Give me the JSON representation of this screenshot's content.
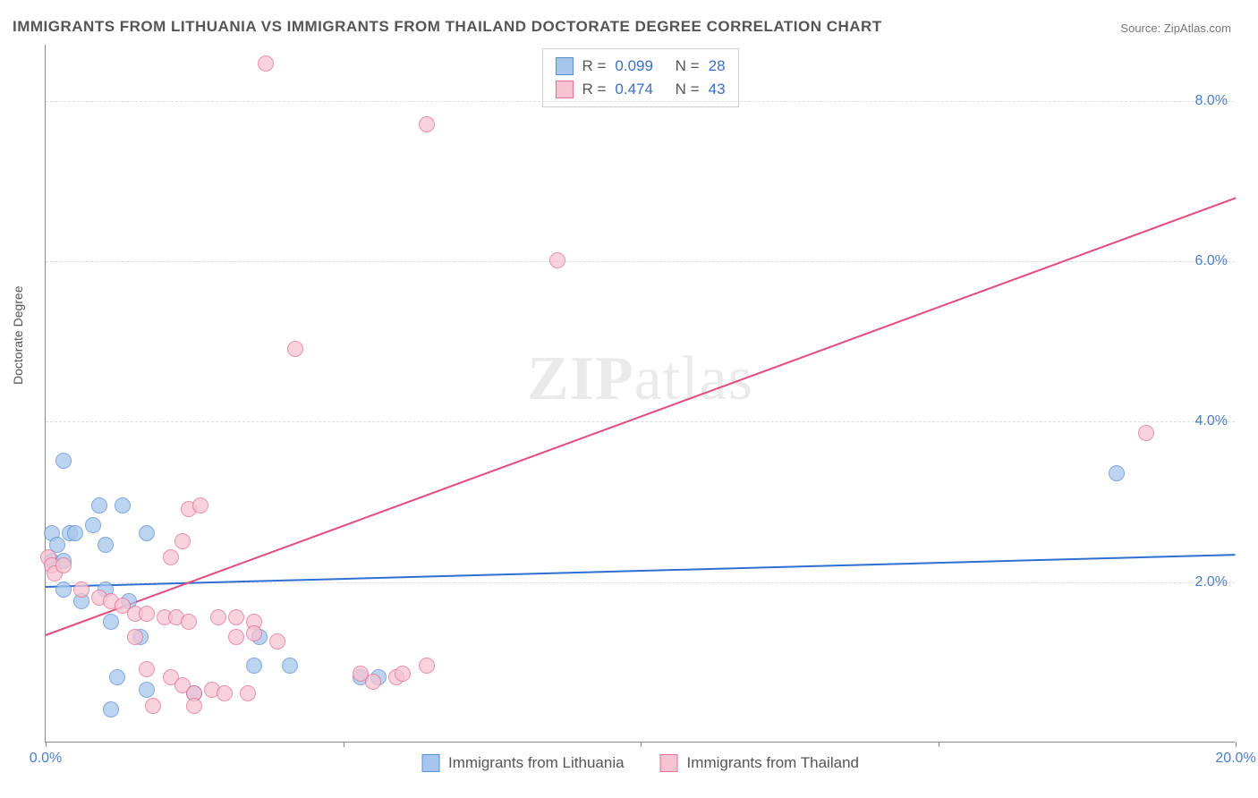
{
  "title": "IMMIGRANTS FROM LITHUANIA VS IMMIGRANTS FROM THAILAND DOCTORATE DEGREE CORRELATION CHART",
  "source_label": "Source:",
  "source_name": "ZipAtlas.com",
  "ylabel": "Doctorate Degree",
  "watermark": {
    "bold": "ZIP",
    "rest": "atlas"
  },
  "chart": {
    "type": "scatter",
    "background_color": "#ffffff",
    "grid_color": "#dddddd",
    "axis_color": "#888888",
    "xlim": [
      0,
      20
    ],
    "ylim": [
      0,
      8.7
    ],
    "xticks": [
      0,
      5,
      10,
      15,
      20
    ],
    "xtick_labels": [
      "0.0%",
      "",
      "",
      "",
      "20.0%"
    ],
    "yticks": [
      2,
      4,
      6,
      8
    ],
    "ytick_labels": [
      "2.0%",
      "4.0%",
      "6.0%",
      "8.0%"
    ],
    "tick_label_color": "#4a7ec9",
    "tick_label_fontsize": 16,
    "label_fontsize": 14,
    "title_fontsize": 17,
    "title_color": "#555555",
    "series": [
      {
        "name": "Immigrants from Lithuania",
        "fill_color": "#a7c6ed",
        "stroke_color": "#5a8ed0",
        "marker_size": 18,
        "R": 0.099,
        "N": 28,
        "trend": {
          "x1": 0,
          "y1": 1.95,
          "x2": 20,
          "y2": 2.35,
          "color": "#2e6fd1",
          "width": 2
        },
        "points": [
          [
            0.3,
            3.5
          ],
          [
            0.1,
            2.6
          ],
          [
            0.4,
            2.6
          ],
          [
            0.2,
            2.45
          ],
          [
            0.5,
            2.6
          ],
          [
            0.1,
            2.25
          ],
          [
            0.3,
            2.25
          ],
          [
            0.9,
            2.95
          ],
          [
            0.8,
            2.7
          ],
          [
            1.3,
            2.95
          ],
          [
            1.7,
            2.6
          ],
          [
            1.0,
            2.45
          ],
          [
            0.3,
            1.9
          ],
          [
            0.6,
            1.75
          ],
          [
            1.0,
            1.9
          ],
          [
            1.4,
            1.75
          ],
          [
            1.1,
            1.5
          ],
          [
            1.6,
            1.3
          ],
          [
            3.6,
            1.3
          ],
          [
            3.5,
            0.95
          ],
          [
            4.1,
            0.95
          ],
          [
            1.2,
            0.8
          ],
          [
            1.7,
            0.65
          ],
          [
            2.5,
            0.6
          ],
          [
            5.3,
            0.8
          ],
          [
            5.6,
            0.8
          ],
          [
            1.1,
            0.4
          ],
          [
            18.0,
            3.35
          ]
        ]
      },
      {
        "name": "Immigrants from Thailand",
        "fill_color": "#f6c3d1",
        "stroke_color": "#e56f91",
        "marker_size": 18,
        "R": 0.474,
        "N": 43,
        "trend": {
          "x1": 0,
          "y1": 1.35,
          "x2": 20,
          "y2": 6.8,
          "color": "#e54b7a",
          "width": 2
        },
        "points": [
          [
            3.7,
            8.45
          ],
          [
            6.4,
            7.7
          ],
          [
            4.2,
            4.9
          ],
          [
            8.6,
            6.0
          ],
          [
            2.4,
            2.9
          ],
          [
            2.6,
            2.95
          ],
          [
            2.3,
            2.5
          ],
          [
            2.1,
            2.3
          ],
          [
            0.05,
            2.3
          ],
          [
            0.1,
            2.2
          ],
          [
            0.15,
            2.1
          ],
          [
            0.3,
            2.2
          ],
          [
            0.6,
            1.9
          ],
          [
            0.9,
            1.8
          ],
          [
            1.1,
            1.75
          ],
          [
            1.3,
            1.7
          ],
          [
            1.5,
            1.6
          ],
          [
            1.7,
            1.6
          ],
          [
            2.0,
            1.55
          ],
          [
            2.2,
            1.55
          ],
          [
            2.4,
            1.5
          ],
          [
            2.9,
            1.55
          ],
          [
            3.2,
            1.55
          ],
          [
            3.5,
            1.5
          ],
          [
            3.2,
            1.3
          ],
          [
            3.5,
            1.35
          ],
          [
            3.9,
            1.25
          ],
          [
            1.5,
            1.3
          ],
          [
            1.7,
            0.9
          ],
          [
            2.1,
            0.8
          ],
          [
            2.3,
            0.7
          ],
          [
            2.5,
            0.6
          ],
          [
            2.8,
            0.65
          ],
          [
            3.0,
            0.6
          ],
          [
            3.4,
            0.6
          ],
          [
            1.8,
            0.45
          ],
          [
            2.5,
            0.45
          ],
          [
            5.3,
            0.85
          ],
          [
            5.5,
            0.75
          ],
          [
            5.9,
            0.8
          ],
          [
            6.0,
            0.85
          ],
          [
            6.4,
            0.95
          ],
          [
            18.5,
            3.85
          ]
        ]
      }
    ],
    "legend_top": {
      "border_color": "#cccccc",
      "R_label": "R =",
      "N_label": "N ="
    },
    "legend_bottom": {
      "swatch_size": 20
    }
  }
}
